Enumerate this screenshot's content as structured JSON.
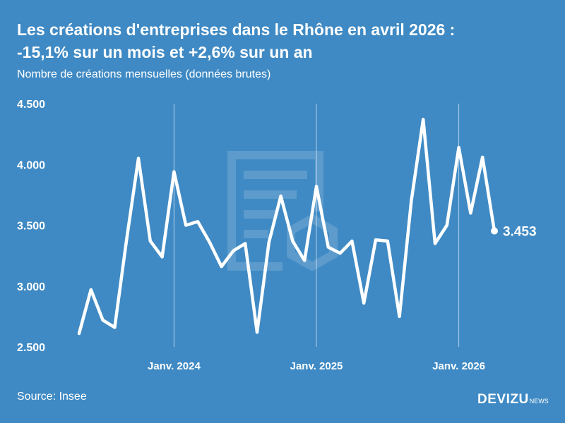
{
  "header": {
    "title_line1": "Les créations d'entreprises dans le Rhône en avril 2026 :",
    "title_line2": "-15,1% sur un mois et +2,6% sur un an",
    "subtitle": "Nombre de créations mensuelles (données brutes)"
  },
  "footer": {
    "source": "Source: Insee",
    "brand": "DEVIZU",
    "brand_suffix": "NEWS"
  },
  "colors": {
    "background": "#3f8ac4",
    "line": "#ffffff"
  },
  "watermark_icon": "document-icon",
  "chart_data": {
    "type": "line",
    "title": "Les créations d'entreprises dans le Rhône en avril 2026 : -15,1% sur un mois et +2,6% sur un an",
    "subtitle": "Nombre de créations mensuelles (données brutes)",
    "x": [
      "2023-05",
      "2023-06",
      "2023-07",
      "2023-08",
      "2023-09",
      "2023-10",
      "2023-11",
      "2023-12",
      "2024-01",
      "2024-02",
      "2024-03",
      "2024-04",
      "2024-05",
      "2024-06",
      "2024-07",
      "2024-08",
      "2024-09",
      "2024-10",
      "2024-11",
      "2024-12",
      "2025-01",
      "2025-02",
      "2025-03",
      "2025-04",
      "2025-05",
      "2025-06",
      "2025-07",
      "2025-08",
      "2025-09",
      "2025-10",
      "2025-11",
      "2025-12",
      "2026-01",
      "2026-02",
      "2026-03",
      "2026-04"
    ],
    "values": [
      2610,
      2970,
      2720,
      2660,
      3380,
      4050,
      3370,
      3240,
      3940,
      3500,
      3530,
      3360,
      3160,
      3290,
      3350,
      2620,
      3360,
      3740,
      3370,
      3210,
      3820,
      3320,
      3270,
      3370,
      2860,
      3380,
      3370,
      2750,
      3700,
      4370,
      3350,
      3500,
      4140,
      3600,
      4060,
      3453
    ],
    "ylim": [
      2500,
      4500
    ],
    "yticks": [
      2500,
      3000,
      3500,
      4000,
      4500
    ],
    "ytick_labels": [
      "2.500",
      "3.000",
      "3.500",
      "4.000",
      "4.500"
    ],
    "xticks": [
      {
        "at": "2024-01",
        "label": "Janv. 2024"
      },
      {
        "at": "2025-01",
        "label": "Janv. 2025"
      },
      {
        "at": "2026-01",
        "label": "Janv. 2026"
      }
    ],
    "end_label": "3.453",
    "xlabel": "",
    "ylabel": "",
    "grid": "vertical lines at January ticks",
    "legend": "none"
  }
}
